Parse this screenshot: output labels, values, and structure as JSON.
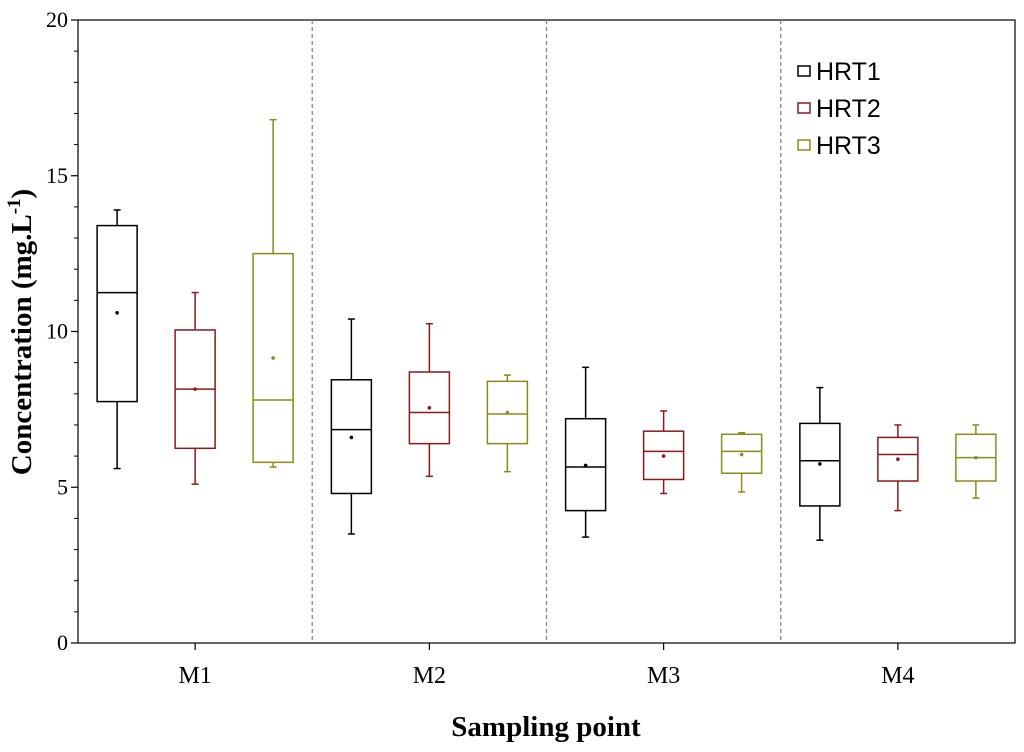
{
  "chart_data": {
    "type": "boxplot",
    "title": "",
    "xlabel": "Sampling point",
    "ylabel_main": "Concentration (mg.L",
    "ylabel_sup": "-1",
    "ylabel_close": ")",
    "ylim": [
      0,
      20
    ],
    "yticks": [
      0,
      5,
      10,
      15,
      20
    ],
    "categories": [
      "M1",
      "M2",
      "M3",
      "M4"
    ],
    "legend_position": "top-right",
    "series": [
      {
        "name": "HRT1",
        "color": "#000000",
        "boxes": [
          {
            "category": "M1",
            "min": 5.6,
            "q1": 7.75,
            "median": 11.25,
            "q3": 13.4,
            "max": 13.9,
            "mean": 10.6
          },
          {
            "category": "M2",
            "min": 3.5,
            "q1": 4.8,
            "median": 6.85,
            "q3": 8.45,
            "max": 10.4,
            "mean": 6.6
          },
          {
            "category": "M3",
            "min": 3.4,
            "q1": 4.25,
            "median": 5.65,
            "q3": 7.2,
            "max": 8.85,
            "mean": 5.7
          },
          {
            "category": "M4",
            "min": 3.3,
            "q1": 4.4,
            "median": 5.85,
            "q3": 7.05,
            "max": 8.2,
            "mean": 5.75
          }
        ]
      },
      {
        "name": "HRT2",
        "color": "#8b1a1a",
        "boxes": [
          {
            "category": "M1",
            "min": 5.1,
            "q1": 6.25,
            "median": 8.15,
            "q3": 10.05,
            "max": 11.25,
            "mean": 8.15
          },
          {
            "category": "M2",
            "min": 5.35,
            "q1": 6.4,
            "median": 7.4,
            "q3": 8.7,
            "max": 10.25,
            "mean": 7.55
          },
          {
            "category": "M3",
            "min": 4.8,
            "q1": 5.25,
            "median": 6.15,
            "q3": 6.8,
            "max": 7.45,
            "mean": 6.0
          },
          {
            "category": "M4",
            "min": 4.25,
            "q1": 5.2,
            "median": 6.05,
            "q3": 6.6,
            "max": 7.0,
            "mean": 5.9
          }
        ]
      },
      {
        "name": "HRT3",
        "color": "#8b8b1a",
        "boxes": [
          {
            "category": "M1",
            "min": 5.65,
            "q1": 5.8,
            "median": 7.8,
            "q3": 12.5,
            "max": 16.8,
            "mean": 9.15
          },
          {
            "category": "M2",
            "min": 5.5,
            "q1": 6.4,
            "median": 7.35,
            "q3": 8.4,
            "max": 8.6,
            "mean": 7.4
          },
          {
            "category": "M3",
            "min": 4.85,
            "q1": 5.45,
            "median": 6.15,
            "q3": 6.7,
            "max": 6.75,
            "mean": 6.05
          },
          {
            "category": "M4",
            "min": 4.65,
            "q1": 5.2,
            "median": 5.95,
            "q3": 6.7,
            "max": 7.0,
            "mean": 5.95
          }
        ]
      }
    ]
  }
}
